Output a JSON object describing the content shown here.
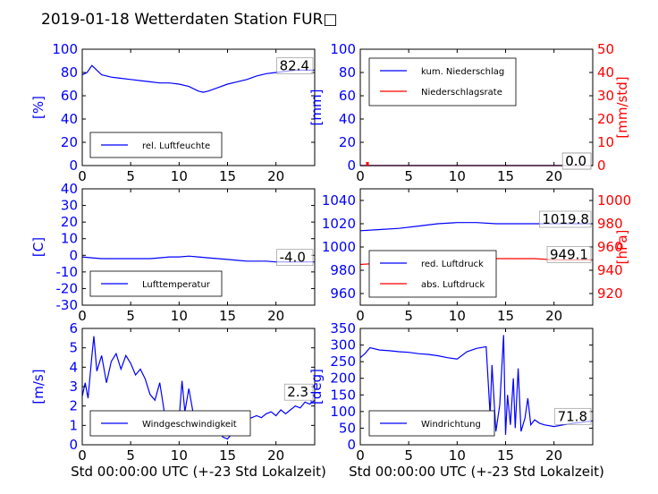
{
  "title": "2019-01-18 Wetterdaten Station FUR□",
  "colors": {
    "blue": "#0000ff",
    "red": "#ff0000",
    "black": "#000000"
  },
  "chart_data": [
    {
      "type": "line",
      "xlim": [
        0,
        24
      ],
      "xticks": [
        0,
        5,
        10,
        15,
        20
      ],
      "ylim": [
        0,
        100
      ],
      "yticks": [
        0,
        20,
        40,
        60,
        80,
        100
      ],
      "ylabel": "[%]",
      "xlabel": "",
      "legend": "lower-left",
      "value_box": "82.4",
      "series": [
        {
          "name": "rel. Luftfeuchte",
          "color": "#0000ff",
          "x": [
            0,
            0.5,
            1,
            1.5,
            2,
            3,
            4,
            5,
            6,
            7,
            8,
            9,
            10,
            11,
            12,
            12.5,
            13,
            14,
            15,
            16,
            17,
            18,
            19,
            20,
            21,
            22,
            23,
            24
          ],
          "y": [
            78,
            80,
            86,
            82,
            78,
            76,
            75,
            74,
            73,
            72,
            71,
            71,
            70,
            68,
            64,
            63,
            64,
            67,
            70,
            72,
            74,
            77,
            79,
            80,
            81,
            82,
            82,
            82
          ]
        }
      ]
    },
    {
      "type": "line",
      "xlim": [
        0,
        24
      ],
      "xticks": [
        0,
        5,
        10,
        15,
        20
      ],
      "ylim": [
        0,
        100
      ],
      "yticks": [
        0,
        20,
        40,
        60,
        80,
        100
      ],
      "y2lim": [
        0,
        50
      ],
      "y2ticks": [
        0,
        10,
        20,
        30,
        40,
        50
      ],
      "ylabel": "[mm]",
      "y2label": "[mm/std]",
      "xlabel": "",
      "legend": "upper-left",
      "value_box": "0.0",
      "value_box2": "0.0",
      "series": [
        {
          "name": "kum. Niederschlag",
          "color": "#0000ff",
          "axis": "left",
          "x": [
            0,
            24
          ],
          "y": [
            0,
            0
          ]
        },
        {
          "name": "Niederschlagsrate",
          "color": "#ff0000",
          "axis": "right",
          "x": [
            0,
            24
          ],
          "y": [
            0,
            0
          ]
        }
      ]
    },
    {
      "type": "line",
      "xlim": [
        0,
        24
      ],
      "xticks": [
        0,
        5,
        10,
        15,
        20
      ],
      "ylim": [
        -30,
        40
      ],
      "yticks": [
        -30,
        -20,
        -10,
        0,
        10,
        20,
        30,
        40
      ],
      "ylabel": "[C]",
      "xlabel": "",
      "legend": "lower-left",
      "value_box": "-4.0",
      "series": [
        {
          "name": "Lufttemperatur",
          "color": "#0000ff",
          "x": [
            0,
            1,
            2,
            3,
            4,
            5,
            6,
            7,
            8,
            9,
            10,
            11,
            12,
            13,
            14,
            15,
            16,
            17,
            18,
            19,
            20,
            21,
            22,
            23,
            24
          ],
          "y": [
            -1,
            -1.5,
            -2,
            -2,
            -2,
            -2,
            -2,
            -2,
            -1.5,
            -1,
            -1,
            -0.5,
            -1,
            -1.5,
            -2,
            -2.5,
            -3,
            -3.5,
            -3.5,
            -3.5,
            -4,
            -4,
            -4,
            -4,
            -4
          ]
        }
      ]
    },
    {
      "type": "line",
      "xlim": [
        0,
        24
      ],
      "xticks": [
        0,
        5,
        10,
        15,
        20
      ],
      "ylim": [
        950,
        1050
      ],
      "yticks": [
        960,
        980,
        1000,
        1020,
        1040
      ],
      "y2lim": [
        910,
        1010
      ],
      "y2ticks": [
        920,
        940,
        960,
        980,
        1000
      ],
      "ylabel": "",
      "y2label": "[hPa]",
      "xlabel": "",
      "legend": "lower-left",
      "value_box": "1019.8",
      "value_box2": "949.1",
      "series": [
        {
          "name": "red. Luftdruck",
          "color": "#0000ff",
          "axis": "left",
          "x": [
            0,
            2,
            4,
            6,
            8,
            10,
            12,
            14,
            16,
            18,
            20,
            22,
            24
          ],
          "y": [
            1014,
            1015,
            1016,
            1018,
            1020,
            1021,
            1021,
            1020,
            1020,
            1020,
            1020,
            1020,
            1020
          ]
        },
        {
          "name": "abs. Luftdruck",
          "color": "#ff0000",
          "axis": "right",
          "x": [
            0,
            2,
            4,
            6,
            8,
            10,
            12,
            14,
            16,
            18,
            20,
            22,
            24
          ],
          "y": [
            945,
            946,
            947,
            948,
            949,
            950,
            950,
            950,
            950,
            950,
            949,
            949,
            949
          ]
        }
      ]
    },
    {
      "type": "line",
      "xlim": [
        0,
        24
      ],
      "xticks": [
        0,
        5,
        10,
        15,
        20
      ],
      "ylim": [
        0,
        6
      ],
      "yticks": [
        0,
        1,
        2,
        3,
        4,
        5,
        6
      ],
      "ylabel": "[m/s]",
      "xlabel": "Std 00:00:00 UTC (+-23 Std Lokalzeit)",
      "legend": "lower-left",
      "value_box": "2.3",
      "series": [
        {
          "name": "Windgeschwindigkeit",
          "color": "#0000ff",
          "x": [
            0,
            0.3,
            0.6,
            1,
            1.2,
            1.5,
            2,
            2.5,
            3,
            3.5,
            4,
            4.5,
            5,
            5.5,
            6,
            6.5,
            7,
            7.5,
            8,
            8.5,
            9,
            9.5,
            10,
            10.3,
            10.6,
            11,
            11.5,
            12,
            12.5,
            13,
            13.5,
            14,
            14.5,
            15,
            15.5,
            16,
            16.5,
            17,
            17.5,
            18,
            18.5,
            19,
            19.5,
            20,
            20.5,
            21,
            21.5,
            22,
            22.5,
            23,
            23.5,
            24
          ],
          "y": [
            2.5,
            3.2,
            2.4,
            4.6,
            5.6,
            3.8,
            4.6,
            3.2,
            4.3,
            4.7,
            3.9,
            4.6,
            4.2,
            3.6,
            3.9,
            3.4,
            2.6,
            2.3,
            3.2,
            1.6,
            1.5,
            0.8,
            1.3,
            3.3,
            1.7,
            2.9,
            1.5,
            1.2,
            0.7,
            1.2,
            0.5,
            0.8,
            0.4,
            0.3,
            0.6,
            1.2,
            0.9,
            1.3,
            1.4,
            1.5,
            1.4,
            1.6,
            1.7,
            1.5,
            1.8,
            1.6,
            1.8,
            2.0,
            1.9,
            2.2,
            2.1,
            2.3
          ]
        }
      ]
    },
    {
      "type": "line",
      "xlim": [
        0,
        24
      ],
      "xticks": [
        0,
        5,
        10,
        15,
        20
      ],
      "ylim": [
        0,
        350
      ],
      "yticks": [
        0,
        50,
        100,
        150,
        200,
        250,
        300,
        350
      ],
      "ylabel": "[deg]",
      "xlabel": "Std 00:00:00 UTC (+-23 Std Lokalzeit)",
      "legend": "lower-left",
      "value_box": "71.8",
      "series": [
        {
          "name": "Windrichtung",
          "color": "#0000ff",
          "x": [
            0,
            0.5,
            1,
            2,
            3,
            4,
            5,
            6,
            7,
            8,
            9,
            10,
            11,
            12,
            13,
            13.4,
            13.6,
            14,
            14.4,
            14.8,
            15,
            15.2,
            15.5,
            15.8,
            16,
            16.3,
            16.6,
            17,
            17.3,
            17.6,
            18,
            18.5,
            19,
            20,
            21,
            22,
            23,
            24
          ],
          "y": [
            262,
            275,
            292,
            285,
            283,
            280,
            278,
            274,
            272,
            268,
            262,
            258,
            280,
            290,
            295,
            90,
            240,
            40,
            120,
            330,
            30,
            150,
            60,
            200,
            50,
            230,
            40,
            80,
            140,
            60,
            75,
            65,
            60,
            55,
            60,
            65,
            68,
            72
          ]
        }
      ]
    }
  ]
}
